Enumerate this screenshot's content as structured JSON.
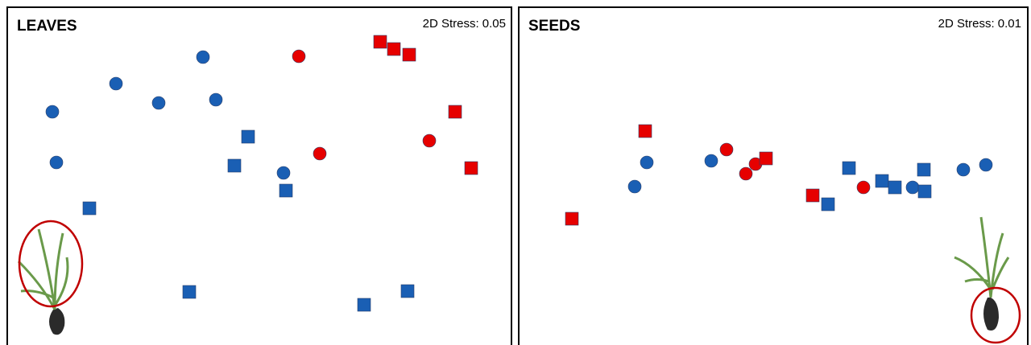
{
  "chart_data": [
    {
      "type": "scatter",
      "title": "LEAVES",
      "annotation": "2D Stress: 0.05",
      "xlim": [
        0,
        628
      ],
      "ylim": [
        0,
        421
      ],
      "series": [
        {
          "marker": "circle",
          "color": "#1a5fb4",
          "x": [
            57,
            136,
            189,
            244,
            260,
            62,
            344
          ],
          "values": [
            290,
            325,
            301,
            358,
            305,
            227,
            214
          ]
        },
        {
          "marker": "square",
          "color": "#1a5fb4",
          "x": [
            300,
            283,
            347,
            103,
            227,
            444,
            498
          ],
          "values": [
            259,
            223,
            192,
            170,
            66,
            50,
            67
          ]
        },
        {
          "marker": "circle",
          "color": "#e60000",
          "x": [
            363,
            389,
            525
          ],
          "values": [
            359,
            238,
            254
          ]
        },
        {
          "marker": "square",
          "color": "#e60000",
          "x": [
            464,
            481,
            500,
            557,
            577
          ],
          "values": [
            377,
            368,
            361,
            290,
            220
          ]
        }
      ]
    },
    {
      "type": "scatter",
      "title": "SEEDS",
      "annotation": "2D Stress: 0.01",
      "xlim": [
        0,
        633
      ],
      "ylim": [
        0,
        421
      ],
      "series": [
        {
          "marker": "circle",
          "color": "#1a5fb4",
          "x": [
            160,
            145,
            240,
            490,
            553,
            581
          ],
          "values": [
            227,
            197,
            229,
            196,
            218,
            224
          ]
        },
        {
          "marker": "square",
          "color": "#1a5fb4",
          "x": [
            411,
            452,
            468,
            504,
            505,
            385
          ],
          "values": [
            220,
            204,
            196,
            218,
            191,
            175
          ]
        },
        {
          "marker": "circle",
          "color": "#e60000",
          "x": [
            259,
            295,
            283,
            429
          ],
          "values": [
            243,
            225,
            213,
            196
          ]
        },
        {
          "marker": "square",
          "color": "#e60000",
          "x": [
            158,
            308,
            366,
            67
          ],
          "values": [
            266,
            232,
            186,
            157
          ]
        }
      ]
    }
  ]
}
